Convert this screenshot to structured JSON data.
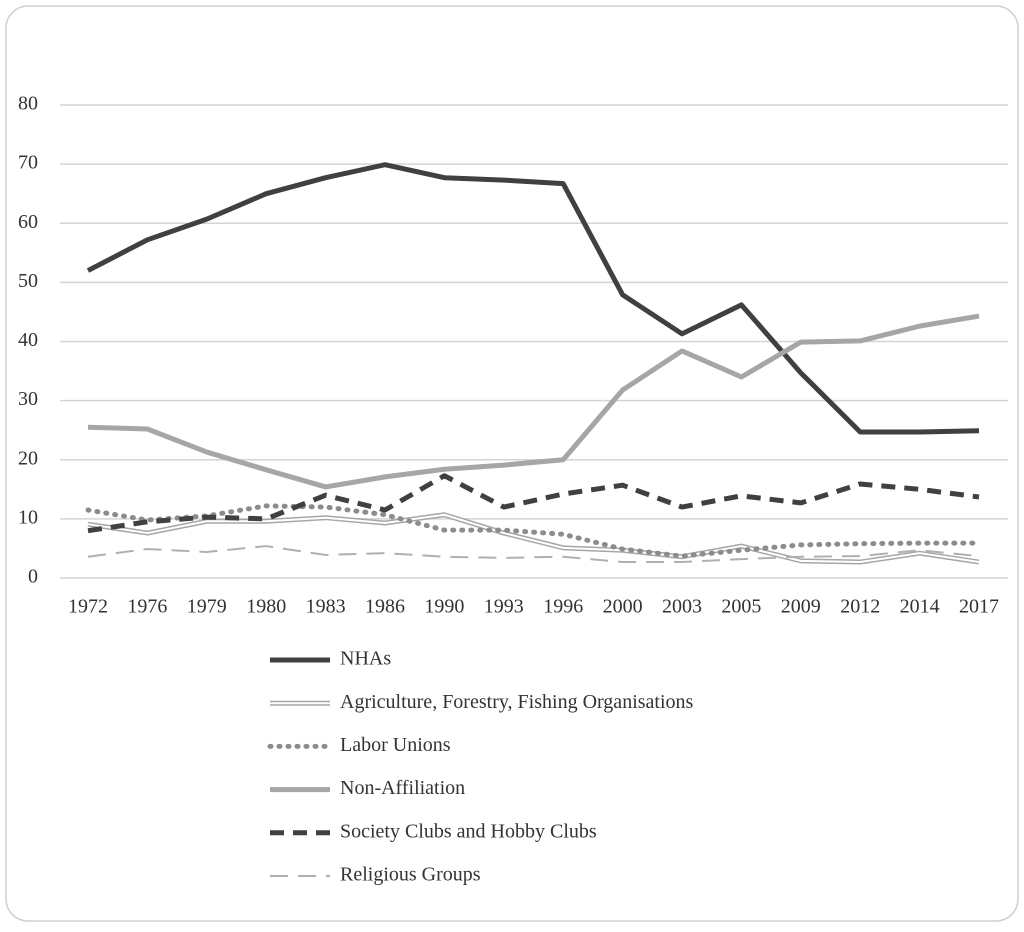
{
  "chart_data": {
    "type": "line",
    "categories": [
      "1972",
      "1976",
      "1979",
      "1980",
      "1983",
      "1986",
      "1990",
      "1993",
      "1996",
      "2000",
      "2003",
      "2005",
      "2009",
      "2012",
      "2014",
      "2017"
    ],
    "ylim": [
      0,
      80
    ],
    "yticks": [
      0,
      10,
      20,
      30,
      40,
      50,
      60,
      70,
      80
    ],
    "grid": true,
    "legend": "bottom",
    "series": [
      {
        "name": "NHAs",
        "color": "#404040",
        "width": 5,
        "dash": "none",
        "values": [
          52,
          57.2,
          60.7,
          65,
          67.7,
          69.9,
          67.7,
          67.3,
          66.7,
          47.9,
          41.3,
          46.2,
          34.7,
          24.7,
          24.7,
          24.9
        ]
      },
      {
        "name": "Agriculture, Forestry, Fishing Organisations",
        "color": "#a6a6a6",
        "width": 5,
        "dash": "none",
        "double": true,
        "values": [
          9.1,
          7.6,
          9.6,
          9.6,
          10.2,
          9.3,
          10.7,
          7.6,
          5.1,
          4.7,
          3.6,
          5.4,
          2.9,
          2.7,
          4.2,
          2.7
        ]
      },
      {
        "name": "Labor Unions",
        "color": "#8c8c8c",
        "width": 5,
        "dash": "1 8",
        "values": [
          11.5,
          9.8,
          10.5,
          12.2,
          12,
          10.7,
          8.1,
          8.1,
          7.4,
          4.9,
          3.7,
          4.7,
          5.6,
          5.8,
          5.9,
          5.9
        ]
      },
      {
        "name": "Non-Affiliation",
        "color": "#a6a6a6",
        "width": 5,
        "dash": "none",
        "values": [
          25.5,
          25.2,
          21.3,
          18.3,
          15.4,
          17.1,
          18.4,
          19.1,
          20,
          31.8,
          38.4,
          34,
          39.9,
          40.1,
          42.6,
          44.3
        ]
      },
      {
        "name": "Society Clubs and Hobby Clubs",
        "color": "#404040",
        "width": 5,
        "dash": "14 9",
        "values": [
          8,
          9.5,
          10.3,
          10,
          14,
          11.5,
          17.3,
          12,
          14.2,
          15.7,
          12,
          13.9,
          12.7,
          15.9,
          15,
          13.7
        ]
      },
      {
        "name": "Religious Groups",
        "color": "#b0b0b0",
        "width": 2,
        "dash": "18 10",
        "values": [
          3.6,
          4.9,
          4.4,
          5.4,
          3.9,
          4.2,
          3.6,
          3.4,
          3.6,
          2.7,
          2.7,
          3.2,
          3.6,
          3.7,
          4.7,
          3.7
        ]
      }
    ]
  }
}
